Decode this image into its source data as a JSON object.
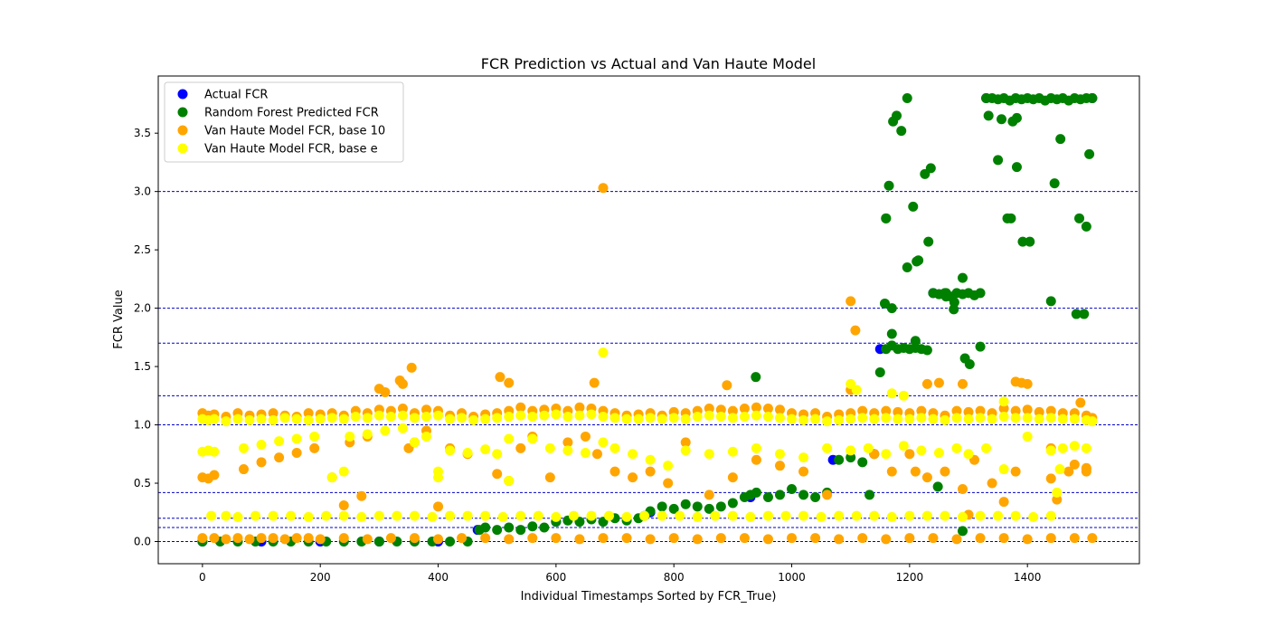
{
  "chart_data": {
    "type": "scatter",
    "title": "FCR Prediction vs Actual and Van Haute Model",
    "xlabel": "Individual Timestamps Sorted by FCR_True)",
    "ylabel": "FCR Value",
    "xlim": [
      -75,
      1590
    ],
    "ylim": [
      -0.19,
      3.99
    ],
    "xticks": [
      0,
      200,
      400,
      600,
      800,
      1000,
      1200,
      1400
    ],
    "yticks": [
      0.0,
      0.5,
      1.0,
      1.5,
      2.0,
      2.5,
      3.0,
      3.5
    ],
    "xtick_labels": [
      "0",
      "200",
      "400",
      "600",
      "800",
      "1000",
      "1200",
      "1400"
    ],
    "ytick_labels": [
      "0.0",
      "0.5",
      "1.0",
      "1.5",
      "2.0",
      "2.5",
      "3.0",
      "3.5"
    ],
    "hlines": [
      0.0,
      0.12,
      0.2,
      0.42,
      1.0,
      1.25,
      1.7,
      2.0,
      3.0
    ],
    "hline_color": "#0000cc",
    "grid": false,
    "legend_position": "top-left",
    "series": [
      {
        "name": "Actual FCR",
        "color": "#0000ff",
        "x": [
          0,
          100,
          200,
          300,
          400,
          467,
          600,
          760,
          930,
          1070,
          1150,
          1240,
          1330,
          1510
        ],
        "y": [
          0.0,
          0.0,
          0.0,
          0.0,
          0.0,
          0.1,
          0.17,
          0.25,
          0.38,
          0.7,
          1.65,
          2.13,
          3.8,
          3.8
        ]
      },
      {
        "name": "Random Forest Predicted FCR",
        "color": "#008000",
        "x": [
          0,
          30,
          60,
          90,
          120,
          150,
          180,
          210,
          240,
          270,
          300,
          330,
          360,
          390,
          420,
          450,
          470,
          480,
          500,
          520,
          540,
          560,
          580,
          600,
          620,
          640,
          660,
          680,
          700,
          720,
          740,
          750,
          760,
          780,
          800,
          820,
          840,
          860,
          880,
          900,
          920,
          930,
          940,
          960,
          980,
          1000,
          1020,
          1040,
          1060,
          1080,
          1100,
          1120,
          1140,
          1150,
          1160,
          1170,
          1180,
          1190,
          1200,
          1210,
          1220,
          1230,
          1240,
          1250,
          1260,
          1270,
          1280,
          1290,
          1300,
          1310,
          1320,
          1330,
          1340,
          1350,
          1360,
          1370,
          1380,
          1390,
          1400,
          1410,
          1420,
          1430,
          1440,
          1450,
          1460,
          1470,
          1480,
          1490,
          1500,
          1510,
          1160,
          1165,
          1172,
          1178,
          1186,
          1196,
          1206,
          1215,
          1226,
          1236,
          1250,
          1262,
          1275,
          1290,
          1302,
          1320,
          1375,
          1372,
          1392,
          1446,
          1456,
          1488,
          1500,
          1505,
          1158,
          1160,
          1170,
          1196,
          1212,
          1232,
          1262,
          1276,
          1294,
          1334,
          1356,
          1366,
          1404,
          1440,
          1483,
          1496,
          1132,
          1248,
          1290,
          1350,
          1382,
          1382,
          939,
          1170,
          1210
        ],
        "y": [
          0.0,
          0.0,
          0.0,
          0.0,
          0.0,
          0.0,
          0.0,
          0.0,
          0.0,
          0.0,
          0.0,
          0.0,
          0.0,
          0.0,
          0.0,
          0.0,
          0.1,
          0.12,
          0.1,
          0.12,
          0.1,
          0.13,
          0.12,
          0.17,
          0.18,
          0.17,
          0.19,
          0.17,
          0.2,
          0.18,
          0.2,
          0.22,
          0.26,
          0.3,
          0.28,
          0.32,
          0.3,
          0.28,
          0.3,
          0.33,
          0.38,
          0.4,
          0.42,
          0.38,
          0.4,
          0.45,
          0.4,
          0.38,
          0.42,
          0.7,
          0.72,
          0.68,
          0.75,
          1.45,
          1.65,
          1.68,
          1.65,
          1.66,
          1.65,
          1.66,
          1.65,
          1.64,
          2.13,
          2.12,
          2.13,
          2.1,
          2.13,
          2.12,
          2.13,
          2.11,
          2.13,
          3.8,
          3.8,
          3.79,
          3.8,
          3.78,
          3.8,
          3.79,
          3.8,
          3.79,
          3.8,
          3.78,
          3.8,
          3.79,
          3.8,
          3.78,
          3.8,
          3.79,
          3.8,
          3.8,
          2.77,
          3.05,
          3.6,
          3.65,
          3.52,
          3.8,
          2.87,
          2.41,
          3.15,
          3.2,
          2.12,
          2.1,
          1.99,
          2.26,
          1.52,
          1.67,
          3.6,
          2.77,
          2.57,
          3.07,
          3.45,
          2.77,
          2.7,
          3.32,
          2.04,
          2.77,
          2.0,
          2.35,
          2.4,
          2.57,
          2.13,
          2.05,
          1.57,
          3.65,
          3.62,
          2.77,
          2.57,
          2.06,
          1.95,
          1.95,
          0.4,
          0.47,
          0.09,
          3.27,
          3.21,
          3.63,
          1.41,
          1.78,
          1.72
        ]
      },
      {
        "name": "Van Haute Model FCR, base 10",
        "color": "#ffa500",
        "x": [
          0,
          10,
          20,
          40,
          60,
          80,
          100,
          120,
          140,
          160,
          180,
          200,
          220,
          240,
          260,
          280,
          300,
          320,
          340,
          360,
          380,
          400,
          420,
          440,
          460,
          480,
          500,
          520,
          540,
          560,
          580,
          600,
          620,
          640,
          660,
          680,
          700,
          720,
          740,
          760,
          780,
          800,
          820,
          840,
          860,
          880,
          900,
          920,
          940,
          960,
          980,
          1000,
          1020,
          1040,
          1060,
          1080,
          1100,
          1120,
          1140,
          1160,
          1180,
          1200,
          1220,
          1240,
          1260,
          1280,
          1300,
          1320,
          1340,
          1360,
          1380,
          1400,
          1420,
          1440,
          1460,
          1480,
          1500,
          1510,
          0,
          20,
          40,
          60,
          80,
          100,
          120,
          140,
          160,
          180,
          200,
          240,
          280,
          320,
          360,
          400,
          440,
          480,
          520,
          560,
          600,
          640,
          680,
          720,
          760,
          800,
          840,
          880,
          920,
          960,
          1000,
          1040,
          1080,
          1120,
          1160,
          1200,
          1240,
          1280,
          1320,
          1360,
          1400,
          1440,
          1480,
          1510,
          0,
          10,
          20,
          70,
          100,
          130,
          160,
          190,
          220,
          250,
          280,
          310,
          340,
          350,
          360,
          380,
          420,
          450,
          500,
          520,
          540,
          560,
          590,
          620,
          650,
          670,
          700,
          730,
          760,
          790,
          820,
          860,
          900,
          940,
          980,
          1020,
          1060,
          1100,
          1140,
          1170,
          1200,
          1230,
          1260,
          1290,
          1310,
          1340,
          1380,
          1400,
          1440,
          1470,
          1500,
          680,
          1100,
          1108,
          355,
          335,
          300,
          505,
          520,
          665,
          890,
          1380,
          1390,
          1290,
          1360,
          1500,
          1500,
          1480,
          1490,
          1440,
          1450,
          1210,
          1250,
          1230,
          400,
          270,
          240,
          1300
        ],
        "y": [
          1.1,
          1.08,
          1.09,
          1.07,
          1.1,
          1.08,
          1.09,
          1.1,
          1.08,
          1.07,
          1.1,
          1.09,
          1.1,
          1.08,
          1.12,
          1.1,
          1.13,
          1.12,
          1.14,
          1.1,
          1.13,
          1.12,
          1.08,
          1.1,
          1.07,
          1.09,
          1.1,
          1.12,
          1.15,
          1.12,
          1.13,
          1.14,
          1.12,
          1.15,
          1.14,
          1.12,
          1.1,
          1.08,
          1.09,
          1.1,
          1.08,
          1.11,
          1.1,
          1.12,
          1.14,
          1.13,
          1.12,
          1.14,
          1.15,
          1.14,
          1.13,
          1.1,
          1.09,
          1.1,
          1.07,
          1.09,
          1.1,
          1.12,
          1.1,
          1.12,
          1.11,
          1.1,
          1.12,
          1.1,
          1.08,
          1.12,
          1.11,
          1.12,
          1.1,
          1.14,
          1.12,
          1.13,
          1.11,
          1.12,
          1.1,
          1.1,
          1.08,
          1.06,
          0.03,
          0.03,
          0.02,
          0.03,
          0.02,
          0.03,
          0.03,
          0.02,
          0.03,
          0.03,
          0.02,
          0.03,
          0.02,
          0.03,
          0.03,
          0.02,
          0.03,
          0.03,
          0.02,
          0.03,
          0.03,
          0.02,
          0.03,
          0.03,
          0.02,
          0.03,
          0.02,
          0.03,
          0.03,
          0.02,
          0.03,
          0.03,
          0.02,
          0.03,
          0.02,
          0.03,
          0.03,
          0.02,
          0.03,
          0.03,
          0.02,
          0.03,
          0.03,
          0.03,
          0.55,
          0.54,
          0.57,
          0.62,
          0.68,
          0.72,
          0.76,
          0.8,
          0.55,
          0.85,
          0.9,
          1.28,
          1.35,
          0.8,
          0.85,
          0.95,
          0.8,
          0.75,
          0.58,
          0.52,
          0.8,
          0.9,
          0.55,
          0.85,
          0.9,
          0.75,
          0.6,
          0.55,
          0.6,
          0.5,
          0.85,
          0.4,
          0.55,
          0.7,
          0.65,
          0.6,
          0.4,
          1.3,
          0.75,
          0.6,
          0.75,
          0.55,
          0.6,
          0.45,
          0.7,
          0.5,
          0.6,
          1.35,
          0.8,
          0.6,
          0.63,
          3.03,
          2.06,
          1.81,
          1.49,
          1.38,
          1.31,
          1.41,
          1.36,
          1.36,
          1.34,
          1.37,
          1.36,
          1.35,
          0.34,
          0.6,
          0.62,
          0.66,
          1.19,
          0.54,
          0.36,
          0.6,
          1.36,
          1.35,
          0.3,
          0.39,
          0.31,
          0.23
        ]
      },
      {
        "name": "Van Haute Model FCR, base e",
        "color": "#ffff00",
        "x": [
          0,
          10,
          20,
          40,
          60,
          80,
          100,
          120,
          140,
          160,
          180,
          200,
          220,
          240,
          260,
          280,
          300,
          320,
          340,
          360,
          380,
          400,
          420,
          440,
          460,
          480,
          500,
          520,
          540,
          560,
          580,
          600,
          620,
          640,
          660,
          680,
          700,
          720,
          740,
          760,
          780,
          800,
          820,
          840,
          860,
          880,
          900,
          920,
          940,
          960,
          980,
          1000,
          1020,
          1040,
          1060,
          1080,
          1100,
          1120,
          1140,
          1160,
          1180,
          1200,
          1220,
          1240,
          1260,
          1280,
          1300,
          1320,
          1340,
          1360,
          1380,
          1400,
          1420,
          1440,
          1460,
          1480,
          1500,
          1510,
          15,
          40,
          60,
          90,
          120,
          150,
          180,
          210,
          240,
          270,
          300,
          330,
          360,
          390,
          420,
          450,
          480,
          510,
          540,
          570,
          600,
          630,
          660,
          690,
          720,
          750,
          780,
          810,
          840,
          870,
          900,
          930,
          960,
          990,
          1020,
          1050,
          1080,
          1110,
          1140,
          1170,
          1200,
          1230,
          1260,
          1290,
          1320,
          1350,
          1380,
          1410,
          1440,
          0,
          10,
          20,
          70,
          100,
          130,
          160,
          190,
          220,
          250,
          280,
          310,
          340,
          360,
          380,
          400,
          420,
          450,
          480,
          500,
          520,
          560,
          590,
          620,
          650,
          680,
          700,
          730,
          760,
          790,
          820,
          860,
          900,
          940,
          980,
          1020,
          1060,
          1100,
          1130,
          1160,
          1190,
          1220,
          1250,
          1280,
          1300,
          1330,
          1360,
          1400,
          1440,
          1460,
          1480,
          1500,
          680,
          1100,
          1110,
          1170,
          1190,
          1450,
          1455,
          400,
          240,
          520,
          1360
        ],
        "y": [
          1.05,
          1.04,
          1.05,
          1.03,
          1.05,
          1.04,
          1.05,
          1.04,
          1.06,
          1.05,
          1.04,
          1.05,
          1.06,
          1.05,
          1.07,
          1.06,
          1.08,
          1.07,
          1.08,
          1.06,
          1.07,
          1.08,
          1.05,
          1.06,
          1.04,
          1.05,
          1.06,
          1.07,
          1.08,
          1.07,
          1.08,
          1.09,
          1.07,
          1.08,
          1.09,
          1.07,
          1.06,
          1.05,
          1.05,
          1.06,
          1.05,
          1.06,
          1.05,
          1.07,
          1.08,
          1.07,
          1.06,
          1.07,
          1.08,
          1.07,
          1.06,
          1.05,
          1.04,
          1.05,
          1.03,
          1.04,
          1.05,
          1.06,
          1.05,
          1.06,
          1.05,
          1.05,
          1.06,
          1.05,
          1.04,
          1.06,
          1.05,
          1.06,
          1.05,
          1.07,
          1.06,
          1.06,
          1.05,
          1.06,
          1.05,
          1.05,
          1.04,
          1.03,
          0.22,
          0.22,
          0.21,
          0.22,
          0.22,
          0.22,
          0.21,
          0.22,
          0.22,
          0.21,
          0.22,
          0.22,
          0.22,
          0.21,
          0.22,
          0.22,
          0.22,
          0.21,
          0.22,
          0.22,
          0.21,
          0.22,
          0.22,
          0.22,
          0.21,
          0.22,
          0.22,
          0.22,
          0.21,
          0.22,
          0.22,
          0.21,
          0.22,
          0.22,
          0.22,
          0.21,
          0.22,
          0.22,
          0.22,
          0.21,
          0.22,
          0.22,
          0.22,
          0.21,
          0.22,
          0.22,
          0.22,
          0.21,
          0.22,
          0.77,
          0.78,
          0.77,
          0.8,
          0.83,
          0.86,
          0.88,
          0.9,
          0.55,
          0.9,
          0.92,
          0.95,
          0.97,
          0.85,
          0.9,
          0.55,
          0.78,
          0.76,
          0.79,
          0.75,
          0.88,
          0.88,
          0.8,
          0.78,
          0.76,
          0.85,
          0.8,
          0.75,
          0.7,
          0.65,
          0.78,
          0.75,
          0.77,
          0.8,
          0.75,
          0.72,
          0.8,
          0.78,
          0.8,
          0.75,
          0.82,
          0.78,
          0.76,
          0.8,
          0.75,
          0.8,
          0.62,
          0.9,
          0.78,
          0.8,
          0.82,
          0.8,
          1.62,
          1.35,
          1.3,
          1.27,
          1.25,
          0.42,
          0.62,
          0.6,
          0.6,
          0.52,
          1.2
        ]
      }
    ]
  }
}
